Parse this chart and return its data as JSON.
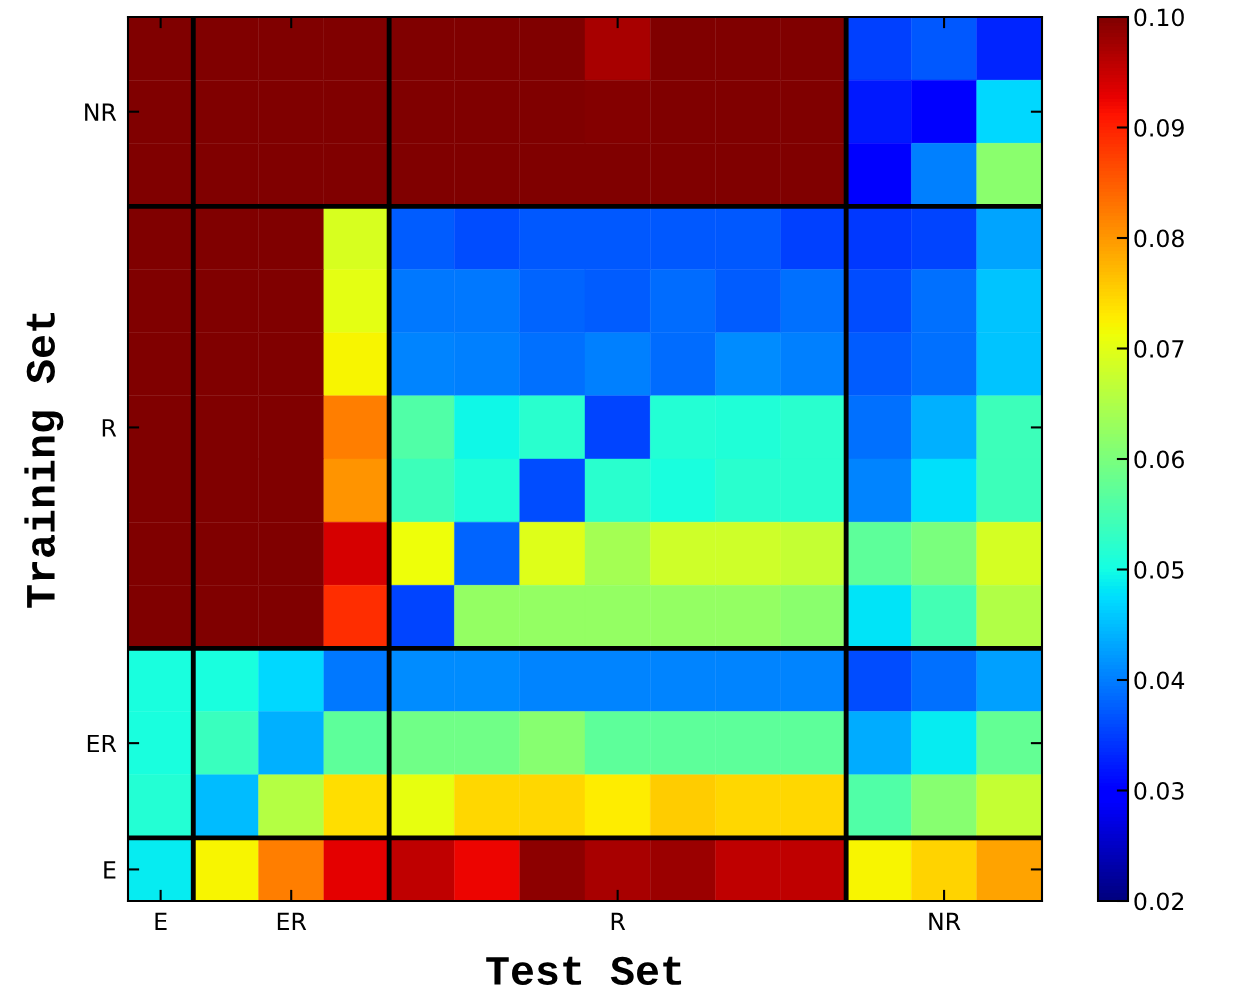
{
  "chart_data": {
    "type": "heatmap",
    "xlabel": "Test Set",
    "ylabel": "Training Set",
    "categories": [
      "E",
      null,
      "ER",
      null,
      null,
      null,
      null,
      "R",
      null,
      null,
      null,
      null,
      "NR",
      null
    ],
    "y_categories": [
      null,
      "NR",
      null,
      null,
      null,
      null,
      "R",
      null,
      null,
      null,
      null,
      "ER",
      null,
      "E"
    ],
    "cells": [
      [
        0.1,
        0.1,
        0.1,
        0.1,
        0.1,
        0.1,
        0.1,
        0.097,
        0.1,
        0.1,
        0.1,
        0.035,
        0.037,
        0.033
      ],
      [
        0.1,
        0.1,
        0.1,
        0.1,
        0.1,
        0.1,
        0.1,
        0.0995,
        0.1,
        0.1,
        0.1,
        0.032,
        0.03,
        0.047
      ],
      [
        0.1,
        0.1,
        0.1,
        0.1,
        0.1,
        0.1,
        0.1,
        0.1,
        0.1,
        0.1,
        0.1,
        0.029,
        0.04,
        0.0615
      ],
      [
        0.1,
        0.1,
        0.1,
        0.069,
        0.0375,
        0.036,
        0.037,
        0.037,
        0.037,
        0.037,
        0.035,
        0.0345,
        0.0355,
        0.043
      ],
      [
        0.1,
        0.1,
        0.1,
        0.07,
        0.0395,
        0.0395,
        0.038,
        0.0375,
        0.0385,
        0.0375,
        0.039,
        0.036,
        0.039,
        0.0455
      ],
      [
        0.1,
        0.1,
        0.1,
        0.072,
        0.0405,
        0.04,
        0.039,
        0.04,
        0.0385,
        0.041,
        0.04,
        0.0375,
        0.039,
        0.0455
      ],
      [
        0.1,
        0.1,
        0.1,
        0.082,
        0.0557,
        0.0495,
        0.052,
        0.0355,
        0.0515,
        0.051,
        0.052,
        0.039,
        0.044,
        0.054
      ],
      [
        0.1,
        0.1,
        0.1,
        0.08,
        0.054,
        0.051,
        0.036,
        0.052,
        0.0505,
        0.052,
        0.052,
        0.0405,
        0.0475,
        0.054
      ],
      [
        0.1,
        0.1,
        0.1,
        0.094,
        0.071,
        0.038,
        0.0695,
        0.064,
        0.068,
        0.068,
        0.067,
        0.057,
        0.06,
        0.0686
      ],
      [
        0.1,
        0.1,
        0.1,
        0.089,
        0.0355,
        0.0625,
        0.0625,
        0.0625,
        0.0625,
        0.0625,
        0.0615,
        0.048,
        0.0545,
        0.065
      ],
      [
        0.0505,
        0.0505,
        0.047,
        0.0395,
        0.041,
        0.041,
        0.0405,
        0.0405,
        0.0405,
        0.0405,
        0.0405,
        0.036,
        0.039,
        0.0425
      ],
      [
        0.0505,
        0.0535,
        0.044,
        0.057,
        0.0588,
        0.0588,
        0.061,
        0.057,
        0.057,
        0.057,
        0.057,
        0.0435,
        0.0485,
        0.0575
      ],
      [
        0.0515,
        0.045,
        0.0655,
        0.0738,
        0.0705,
        0.0745,
        0.0745,
        0.0727,
        0.0755,
        0.0745,
        0.0745,
        0.0557,
        0.061,
        0.067
      ],
      [
        0.0485,
        0.072,
        0.082,
        0.093,
        0.0955,
        0.0925,
        0.099,
        0.097,
        0.098,
        0.0955,
        0.0955,
        0.072,
        0.075,
        0.079
      ]
    ],
    "clim": [
      0.02,
      0.1
    ],
    "cticks": [
      {
        "value": 0.02,
        "label": "0.02"
      },
      {
        "value": 0.03,
        "label": "0.03"
      },
      {
        "value": 0.04,
        "label": "0.04"
      },
      {
        "value": 0.05,
        "label": "0.05"
      },
      {
        "value": 0.06,
        "label": "0.06"
      },
      {
        "value": 0.07,
        "label": "0.07"
      },
      {
        "value": 0.08,
        "label": "0.08"
      },
      {
        "value": 0.09,
        "label": "0.09"
      },
      {
        "value": 0.1,
        "label": "0.10"
      }
    ],
    "grid": false
  }
}
